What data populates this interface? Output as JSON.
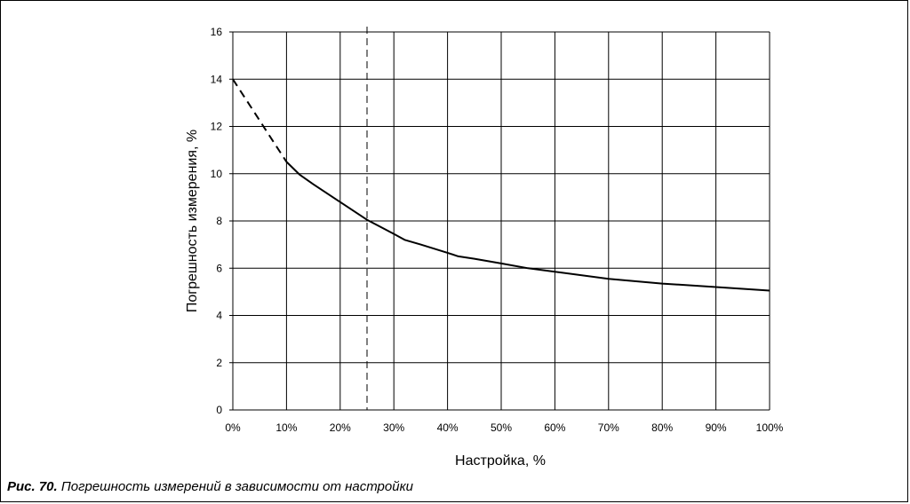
{
  "chart_data": {
    "type": "line",
    "xlabel": "Настройка, %",
    "ylabel": "Погрешность измерения, %",
    "xlim": [
      0,
      100
    ],
    "ylim": [
      0,
      16
    ],
    "x_ticks": [
      "0%",
      "10%",
      "20%",
      "30%",
      "40%",
      "50%",
      "60%",
      "70%",
      "80%",
      "90%",
      "100%"
    ],
    "y_ticks": [
      "0",
      "2",
      "4",
      "6",
      "8",
      "10",
      "12",
      "14",
      "16"
    ],
    "grid": true,
    "series": [
      {
        "style": "dashed",
        "x": [
          0,
          2,
          4,
          6,
          8,
          10
        ],
        "y": [
          14.0,
          13.3,
          12.6,
          11.9,
          11.2,
          10.5
        ]
      },
      {
        "style": "solid",
        "x": [
          10,
          12.5,
          15,
          20,
          25,
          30,
          32,
          35,
          40,
          42,
          45,
          50,
          55,
          60,
          70,
          80,
          90,
          100
        ],
        "y": [
          10.5,
          9.95,
          9.55,
          8.8,
          8.05,
          7.45,
          7.2,
          7.0,
          6.65,
          6.5,
          6.4,
          6.2,
          6.0,
          5.85,
          5.55,
          5.35,
          5.2,
          5.05
        ]
      }
    ],
    "annotations": [
      {
        "type": "vertical-dashed-line",
        "x": 25
      }
    ]
  },
  "caption": {
    "label": "Рис. 70.",
    "text": " Погрешность измерений в зависимости от настройки"
  }
}
